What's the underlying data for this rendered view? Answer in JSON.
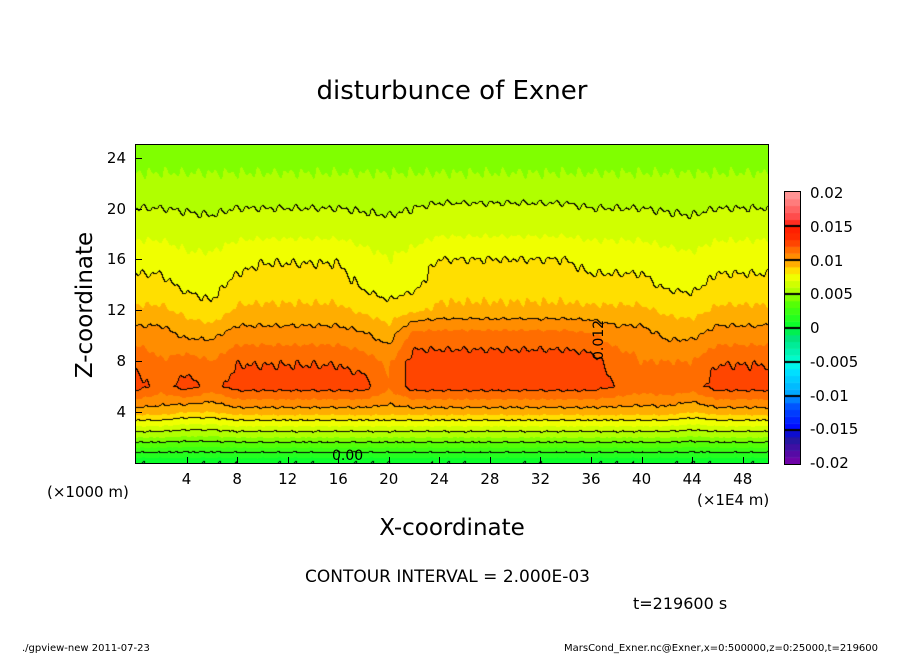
{
  "chart_data": {
    "type": "heatmap",
    "subtype": "filled-contour",
    "title": "disturbunce of Exner",
    "xlabel": "X-coordinate",
    "ylabel": "Z-coordinate",
    "x_unit": "(×1E4 m)",
    "y_unit": "(×1000 m)",
    "xlim": [
      0,
      50
    ],
    "ylim": [
      0,
      25
    ],
    "x_ticks": [
      "4",
      "8",
      "12",
      "16",
      "20",
      "24",
      "28",
      "32",
      "36",
      "40",
      "44",
      "48"
    ],
    "y_ticks": [
      "4",
      "8",
      "12",
      "16",
      "20",
      "24"
    ],
    "colorbar": {
      "range": [
        -0.02,
        0.02
      ],
      "level_step": 0.001,
      "tick_labels": [
        "0.02",
        "0.015",
        "0.01",
        "0.005",
        "0",
        "-0.005",
        "-0.01",
        "-0.015",
        "-0.02"
      ],
      "anchor_colors": [
        [
          -0.02,
          "#7a00a8"
        ],
        [
          -0.016,
          "#1a1aa0"
        ],
        [
          -0.015,
          "#0000ff"
        ],
        [
          -0.011,
          "#0060ff"
        ],
        [
          -0.01,
          "#00a0ff"
        ],
        [
          -0.006,
          "#00e8ff"
        ],
        [
          -0.005,
          "#00ffd8"
        ],
        [
          -0.001,
          "#00e070"
        ],
        [
          0,
          "#00ff30"
        ],
        [
          0.004,
          "#60ff00"
        ],
        [
          0.005,
          "#a0ff00"
        ],
        [
          0.007,
          "#e0ff00"
        ],
        [
          0.008,
          "#ffff00"
        ],
        [
          0.009,
          "#ffc000"
        ],
        [
          0.01,
          "#ff9a00"
        ],
        [
          0.011,
          "#ff8000"
        ],
        [
          0.012,
          "#ff5a00"
        ],
        [
          0.013,
          "#ff3000"
        ],
        [
          0.015,
          "#ff1a00"
        ],
        [
          0.016,
          "#ff4040"
        ],
        [
          0.02,
          "#ffa0a0"
        ]
      ]
    },
    "contour_interval": 0.002,
    "contour_labels": [
      "0.012",
      "0.00"
    ],
    "grid_x": [
      0,
      2,
      4,
      6,
      8,
      10,
      12,
      14,
      16,
      18,
      20,
      22,
      24,
      26,
      28,
      30,
      32,
      34,
      36,
      38,
      40,
      42,
      44,
      46,
      48,
      50
    ],
    "grid_z": [
      0,
      2,
      4,
      6,
      8,
      10,
      12,
      14,
      16,
      18,
      20,
      22,
      24
    ],
    "values_approx": [
      [
        0,
        0,
        0,
        0,
        0,
        0,
        0,
        0,
        0,
        0,
        0,
        0,
        0,
        0,
        0,
        0,
        0,
        0,
        0,
        0,
        0,
        0,
        0,
        0,
        0,
        0
      ],
      [
        0.005,
        0.005,
        0.0048,
        0.0048,
        0.005,
        0.005,
        0.005,
        0.005,
        0.005,
        0.005,
        0.005,
        0.005,
        0.005,
        0.005,
        0.005,
        0.005,
        0.005,
        0.005,
        0.005,
        0.005,
        0.005,
        0.005,
        0.0048,
        0.005,
        0.005,
        0.005
      ],
      [
        0.0095,
        0.0095,
        0.009,
        0.009,
        0.0095,
        0.0095,
        0.0095,
        0.0095,
        0.0095,
        0.0095,
        0.0095,
        0.0095,
        0.0095,
        0.0095,
        0.0095,
        0.0095,
        0.0095,
        0.0095,
        0.0095,
        0.0095,
        0.0095,
        0.0095,
        0.009,
        0.0095,
        0.0095,
        0.0095
      ],
      [
        0.0125,
        0.0115,
        0.0125,
        0.0115,
        0.0125,
        0.0125,
        0.0125,
        0.0125,
        0.0125,
        0.0125,
        0.0112,
        0.0125,
        0.0125,
        0.0125,
        0.0125,
        0.0125,
        0.0125,
        0.0125,
        0.0125,
        0.012,
        0.0115,
        0.0118,
        0.0115,
        0.0125,
        0.0125,
        0.0125
      ],
      [
        0.0118,
        0.011,
        0.0115,
        0.011,
        0.0119,
        0.0119,
        0.0119,
        0.0119,
        0.0119,
        0.0115,
        0.0108,
        0.0124,
        0.0124,
        0.0124,
        0.0124,
        0.0124,
        0.0124,
        0.0124,
        0.0124,
        0.0115,
        0.011,
        0.011,
        0.011,
        0.0119,
        0.0119,
        0.0119
      ],
      [
        0.0105,
        0.0105,
        0.0098,
        0.0098,
        0.0105,
        0.0105,
        0.0105,
        0.0105,
        0.0105,
        0.0102,
        0.0095,
        0.0115,
        0.0115,
        0.0115,
        0.0115,
        0.0115,
        0.0115,
        0.0115,
        0.0112,
        0.0105,
        0.0105,
        0.0098,
        0.0098,
        0.0105,
        0.0105,
        0.0105
      ],
      [
        0.0092,
        0.0092,
        0.0087,
        0.0082,
        0.0092,
        0.0092,
        0.0092,
        0.0092,
        0.0092,
        0.0088,
        0.0084,
        0.0088,
        0.0092,
        0.0092,
        0.0092,
        0.0092,
        0.0092,
        0.0092,
        0.0092,
        0.0092,
        0.0092,
        0.0088,
        0.0086,
        0.0092,
        0.0092,
        0.0092
      ],
      [
        0.0083,
        0.0083,
        0.0077,
        0.0076,
        0.0083,
        0.0085,
        0.0085,
        0.0085,
        0.0085,
        0.0078,
        0.0074,
        0.0077,
        0.0086,
        0.0086,
        0.0086,
        0.0086,
        0.0086,
        0.0086,
        0.0083,
        0.0083,
        0.0083,
        0.0078,
        0.0077,
        0.0083,
        0.0083,
        0.0083
      ],
      [
        0.0076,
        0.0076,
        0.0072,
        0.0072,
        0.0076,
        0.0079,
        0.0079,
        0.0079,
        0.0079,
        0.0074,
        0.007,
        0.0074,
        0.008,
        0.008,
        0.008,
        0.008,
        0.008,
        0.008,
        0.0076,
        0.0076,
        0.0076,
        0.0074,
        0.0072,
        0.0076,
        0.0076,
        0.0076
      ],
      [
        0.0068,
        0.0068,
        0.0066,
        0.0065,
        0.0068,
        0.0068,
        0.0068,
        0.0068,
        0.0068,
        0.0066,
        0.0065,
        0.0066,
        0.0069,
        0.0069,
        0.0069,
        0.0069,
        0.0069,
        0.0069,
        0.0068,
        0.0068,
        0.0068,
        0.0066,
        0.0065,
        0.0068,
        0.0068,
        0.0068
      ],
      [
        0.006,
        0.006,
        0.0059,
        0.0058,
        0.006,
        0.006,
        0.006,
        0.006,
        0.006,
        0.0059,
        0.0058,
        0.006,
        0.0062,
        0.0062,
        0.0062,
        0.0062,
        0.0062,
        0.0062,
        0.006,
        0.006,
        0.006,
        0.0059,
        0.0058,
        0.006,
        0.006,
        0.006
      ],
      [
        0.0052,
        0.0052,
        0.0052,
        0.0052,
        0.0052,
        0.0052,
        0.0052,
        0.0052,
        0.0052,
        0.0052,
        0.0052,
        0.0052,
        0.0052,
        0.0052,
        0.0052,
        0.0052,
        0.0052,
        0.0052,
        0.0052,
        0.0052,
        0.0052,
        0.0052,
        0.0052,
        0.0052,
        0.0052,
        0.0052
      ],
      [
        0.0047,
        0.0047,
        0.0047,
        0.0047,
        0.0047,
        0.0047,
        0.0047,
        0.0047,
        0.0047,
        0.0047,
        0.0047,
        0.0047,
        0.0047,
        0.0047,
        0.0047,
        0.0047,
        0.0047,
        0.0047,
        0.0047,
        0.0047,
        0.0047,
        0.0047,
        0.0047,
        0.0047,
        0.0047,
        0.0047
      ]
    ]
  },
  "annotations": {
    "contour_interval_text": "CONTOUR INTERVAL = 2.000E-03",
    "time_text": "t=219600 s"
  },
  "footer": {
    "left": "./gpview-new   2011-07-23",
    "right": "MarsCond_Exner.nc@Exner,x=0:500000,z=0:25000,t=219600"
  }
}
